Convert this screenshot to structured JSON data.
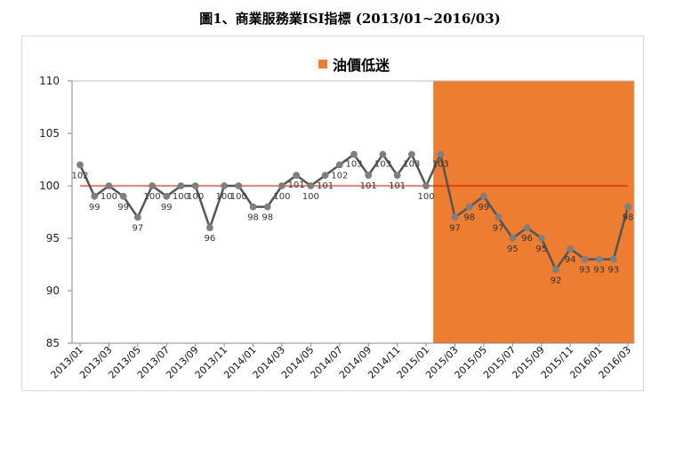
{
  "title": "圖1、商業服務業ISI指標 (2013/01~2016/03)",
  "chart_data": {
    "type": "line",
    "categories": [
      "2013/01",
      "2013/02",
      "2013/03",
      "2013/04",
      "2013/05",
      "2013/06",
      "2013/07",
      "2013/08",
      "2013/09",
      "2013/10",
      "2013/11",
      "2013/12",
      "2014/01",
      "2014/02",
      "2014/03",
      "2014/04",
      "2014/05",
      "2014/06",
      "2014/07",
      "2014/08",
      "2014/09",
      "2014/10",
      "2014/11",
      "2014/12",
      "2015/01",
      "2015/02",
      "2015/03",
      "2015/04",
      "2015/05",
      "2015/06",
      "2015/07",
      "2015/08",
      "2015/09",
      "2015/10",
      "2015/11",
      "2015/12",
      "2016/01",
      "2016/02",
      "2016/03"
    ],
    "tick_labels": [
      "2013/01",
      "2013/03",
      "2013/05",
      "2013/07",
      "2013/09",
      "2013/11",
      "2014/01",
      "2014/03",
      "2014/05",
      "2014/07",
      "2014/09",
      "2014/11",
      "2015/01",
      "2015/03",
      "2015/05",
      "2015/07",
      "2015/09",
      "2015/11",
      "2016/01",
      "2016/03"
    ],
    "values": [
      102,
      99,
      100,
      99,
      97,
      100,
      99,
      100,
      100,
      96,
      100,
      100,
      98,
      98,
      100,
      101,
      100,
      101,
      102,
      103,
      101,
      103,
      101,
      103,
      100,
      103,
      97,
      98,
      99,
      97,
      95,
      96,
      95,
      92,
      94,
      93,
      93,
      93,
      98
    ],
    "reference_line": 100,
    "ylim": [
      85,
      110
    ],
    "yticks": [
      85,
      90,
      95,
      100,
      105,
      110
    ],
    "shaded_region": {
      "label": "油價低迷",
      "start": "2015/01",
      "end": "2016/03",
      "color": "#ED7D31"
    },
    "colors": {
      "line": "#555555",
      "marker": "#7f7f7f",
      "reference": "#E2461E",
      "reference_left": "#E58A7A"
    },
    "legend_position": "top-center",
    "grid": false
  }
}
